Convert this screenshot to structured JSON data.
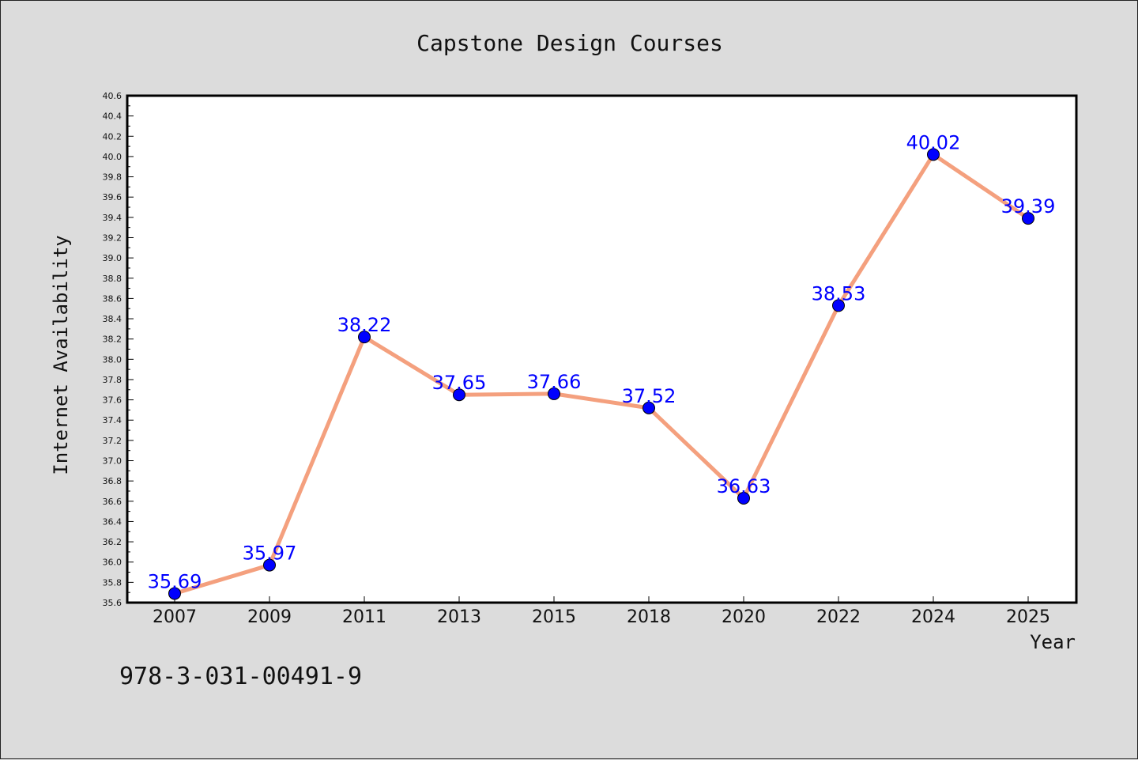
{
  "chart_data": {
    "type": "line",
    "title": "Capstone Design Courses",
    "xlabel": "Year",
    "ylabel": "Internet Availability",
    "categories": [
      "2007",
      "2009",
      "2011",
      "2013",
      "2015",
      "2018",
      "2020",
      "2022",
      "2024",
      "2025"
    ],
    "series": [
      {
        "values": [
          35.69,
          35.97,
          38.22,
          37.65,
          37.66,
          37.52,
          36.63,
          38.53,
          40.02,
          39.39
        ],
        "labels": [
          "35.69",
          "35.97",
          "38.22",
          "37.65",
          "37.66",
          "37.52",
          "36.63",
          "38.53",
          "40.02",
          "39.39"
        ],
        "line_color": "#f4a07e",
        "marker_color": "#0000ff"
      }
    ],
    "ylim": [
      35.6,
      40.6
    ],
    "yticks": [
      "35.6",
      "35.8",
      "36.0",
      "36.2",
      "36.4",
      "36.6",
      "36.8",
      "37.0",
      "37.2",
      "37.4",
      "37.6",
      "37.8",
      "38.0",
      "38.2",
      "38.4",
      "38.6",
      "38.8",
      "39.0",
      "39.2",
      "39.4",
      "39.6",
      "39.8",
      "40.0",
      "40.2",
      "40.4",
      "40.6"
    ],
    "grid": false,
    "legend": "none"
  },
  "footer": {
    "isbn": "978-3-031-00491-9"
  },
  "colors": {
    "background": "#dcdcdc",
    "plot_background": "#ffffff",
    "label": "#0000ff"
  }
}
